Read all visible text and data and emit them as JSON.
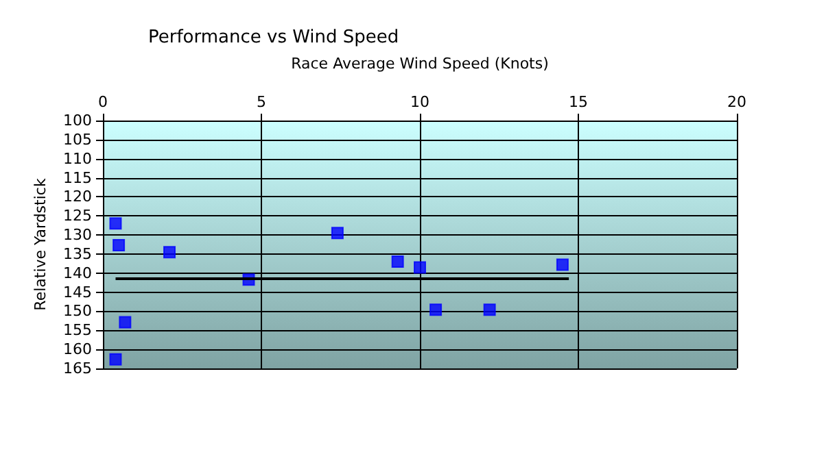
{
  "chart_data": {
    "type": "scatter",
    "title": "Performance vs Wind Speed",
    "xlabel": "Race Average Wind Speed (Knots)",
    "ylabel": "Relative Yardstick",
    "series": [
      {
        "color": "#0000ff",
        "x": [
          0.4,
          0.5,
          2.1,
          4.6,
          7.4,
          9.3,
          10.0,
          10.5,
          12.2,
          14.5,
          0.7,
          0.4
        ],
        "values": [
          127,
          132.7,
          134.5,
          141.7,
          129.5,
          137,
          138.5,
          149.6,
          149.6,
          137.8,
          152.9,
          162.6
        ]
      },
      {
        "type": "line",
        "marker": "none",
        "color": "#000000",
        "x": [
          0.4,
          14.7
        ],
        "values": [
          141.5,
          141.5
        ]
      }
    ],
    "xlim": [
      0,
      20
    ],
    "xticks": [
      0,
      5,
      10,
      15,
      20
    ],
    "ylim": [
      165,
      100
    ],
    "yticks": [
      100,
      105,
      110,
      115,
      120,
      125,
      130,
      135,
      140,
      145,
      150,
      155,
      160,
      165
    ],
    "grid": true,
    "marker": "square",
    "line_style": "solid"
  }
}
